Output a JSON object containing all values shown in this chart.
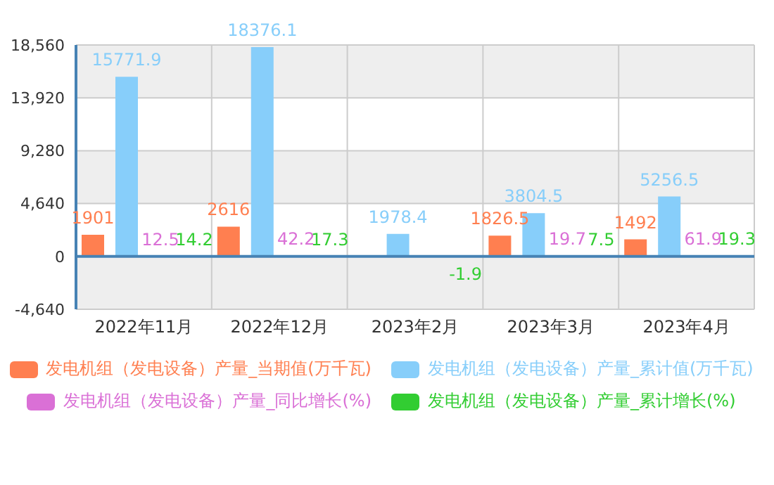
{
  "chart_data": {
    "type": "bar",
    "categories": [
      "2022年11月",
      "2022年12月",
      "2023年2月",
      "2023年3月",
      "2023年4月"
    ],
    "series": [
      {
        "name": "发电机组（发电设备）产量_当期值(万千瓦)",
        "color": "#ff7f50",
        "values": [
          1901,
          2616,
          null,
          1826.5,
          1492
        ]
      },
      {
        "name": "发电机组（发电设备）产量_累计值(万千瓦)",
        "color": "#87cefa",
        "values": [
          15771.9,
          18376.1,
          1978.4,
          3804.5,
          5256.5
        ]
      },
      {
        "name": "发电机组（发电设备）产量_同比增长(%)",
        "color": "#da70d6",
        "values": [
          12.5,
          42.2,
          null,
          19.7,
          61.9
        ]
      },
      {
        "name": "发电机组（发电设备）产量_累计增长(%)",
        "color": "#32cd32",
        "values": [
          14.2,
          17.3,
          -1.9,
          7.5,
          19.3
        ]
      }
    ],
    "ylim": [
      -4640,
      18560
    ],
    "yticks": [
      {
        "value": -4640,
        "label": "-4,640"
      },
      0,
      {
        "value": 4640,
        "label": "4,640"
      },
      {
        "value": 9280,
        "label": "9,280"
      },
      {
        "value": 13920,
        "label": "13,920"
      },
      {
        "value": 18560,
        "label": "18,560"
      }
    ],
    "ref_lines": [
      {
        "axis": "y",
        "value": 0,
        "color": "#4682b4"
      }
    ],
    "grid": true,
    "legend": "bottom",
    "data_labels": true
  }
}
